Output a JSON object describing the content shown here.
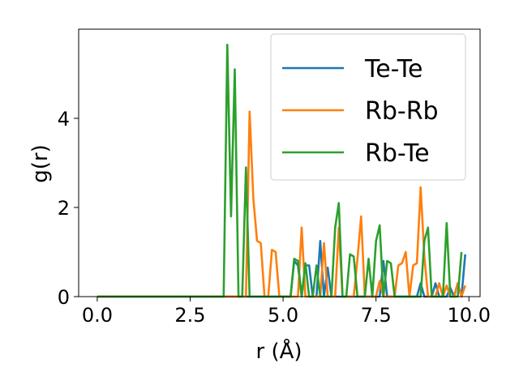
{
  "chart_data": {
    "type": "line",
    "title": "",
    "xlabel": "r (Å)",
    "ylabel": "g(r)",
    "xlim": [
      -0.5,
      10.3
    ],
    "ylim": [
      0,
      6.0
    ],
    "xticks": [
      0.0,
      2.5,
      5.0,
      7.5,
      10.0
    ],
    "xtick_labels": [
      "0.0",
      "2.5",
      "5.0",
      "7.5",
      "10.0"
    ],
    "yticks": [
      0,
      2,
      4
    ],
    "ytick_labels": [
      "0",
      "2",
      "4"
    ],
    "grid": false,
    "legend_position": "top-right",
    "series": [
      {
        "name": "Te-Te",
        "color": "#1f77b4",
        "x": [
          0.0,
          5.2,
          5.3,
          5.4,
          5.5,
          5.6,
          5.7,
          5.8,
          5.9,
          6.0,
          6.1,
          6.2,
          6.3,
          6.4,
          7.6,
          7.7,
          7.8,
          7.9,
          8.6,
          8.7,
          8.8,
          8.9,
          9.0,
          9.1,
          9.2,
          9.3,
          9.4,
          9.5,
          9.6,
          9.7,
          9.8,
          9.9
        ],
        "y": [
          0,
          0,
          0.8,
          0.7,
          0.0,
          0.7,
          0.7,
          0.0,
          0.0,
          1.25,
          0.0,
          0.65,
          0.0,
          0.0,
          0.0,
          0.8,
          0.0,
          0.0,
          0.0,
          0.3,
          0.0,
          0.0,
          0.0,
          0.3,
          0.0,
          0.0,
          0.0,
          0.2,
          0.0,
          0.3,
          0.0,
          0.95
        ]
      },
      {
        "name": "Rb-Rb",
        "color": "#ff7f0e",
        "x": [
          0.0,
          4.0,
          4.1,
          4.2,
          4.3,
          4.4,
          4.5,
          4.6,
          4.7,
          4.8,
          4.9,
          5.0,
          5.1,
          5.2,
          5.3,
          5.4,
          5.5,
          5.6,
          5.7,
          5.8,
          5.9,
          6.0,
          6.1,
          6.2,
          6.3,
          6.4,
          6.5,
          6.6,
          6.7,
          6.8,
          6.9,
          7.0,
          7.1,
          7.2,
          7.3,
          7.4,
          7.5,
          7.6,
          7.7,
          7.8,
          7.9,
          8.0,
          8.1,
          8.2,
          8.3,
          8.4,
          8.5,
          8.6,
          8.7,
          8.8,
          8.9,
          9.0,
          9.1,
          9.2,
          9.3,
          9.4,
          9.5,
          9.6,
          9.7,
          9.8,
          9.9
        ],
        "y": [
          0,
          0,
          4.15,
          2.2,
          1.25,
          1.2,
          0.0,
          0.0,
          1.05,
          1.0,
          0.0,
          0.0,
          0.0,
          0.0,
          0.0,
          0.0,
          1.55,
          0.0,
          0.0,
          0.0,
          0.0,
          0.0,
          1.2,
          0.0,
          0.0,
          0.0,
          1.55,
          0.0,
          0.0,
          0.0,
          0.0,
          0.85,
          1.8,
          0.0,
          0.0,
          0.0,
          0.0,
          0.35,
          0.0,
          0.0,
          0.0,
          0.0,
          0.7,
          0.75,
          1.0,
          0.0,
          0.7,
          0.75,
          2.45,
          0.9,
          0.0,
          0.0,
          0.0,
          0.3,
          0.0,
          0.25,
          0.0,
          0.0,
          0.3,
          0.0,
          0.25
        ]
      },
      {
        "name": "Rb-Te",
        "color": "#2ca02c",
        "x": [
          0.0,
          3.4,
          3.5,
          3.6,
          3.7,
          3.8,
          3.9,
          4.0,
          4.1,
          5.2,
          5.3,
          5.4,
          5.5,
          5.6,
          5.7,
          5.8,
          5.9,
          6.0,
          6.1,
          6.2,
          6.3,
          6.4,
          6.5,
          6.6,
          6.7,
          6.8,
          6.9,
          7.0,
          7.1,
          7.2,
          7.3,
          7.4,
          7.5,
          7.6,
          7.7,
          7.8,
          7.9,
          8.0,
          8.1,
          8.2,
          8.3,
          8.4,
          8.5,
          8.6,
          8.7,
          8.8,
          8.9,
          9.0,
          9.1,
          9.2,
          9.3,
          9.4,
          9.5,
          9.6,
          9.7,
          9.8
        ],
        "y": [
          0,
          0,
          5.65,
          1.8,
          5.1,
          0.0,
          0.0,
          2.9,
          0.0,
          0.0,
          0.85,
          0.8,
          0.0,
          0.75,
          0.0,
          0.0,
          0.7,
          0.0,
          0.0,
          0.0,
          0.0,
          1.55,
          2.1,
          0.0,
          0.0,
          0.95,
          0.9,
          0.0,
          0.0,
          0.0,
          0.85,
          0.0,
          1.25,
          1.6,
          0.0,
          0.8,
          0.75,
          0.0,
          0.0,
          0.0,
          0.0,
          0.0,
          0.0,
          0.0,
          0.0,
          1.25,
          1.55,
          0.0,
          0.0,
          0.0,
          0.0,
          1.65,
          0.0,
          0.0,
          0.0,
          1.0
        ]
      }
    ]
  }
}
